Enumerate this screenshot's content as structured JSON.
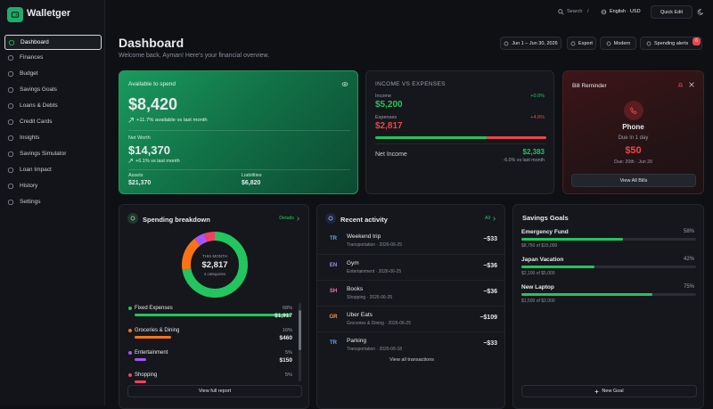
{
  "sidebar": {
    "brand": "Walletger",
    "nav": [
      "Dashboard",
      "Finances",
      "Budget",
      "Savings Goals",
      "Loans & Debts",
      "Credit Cards",
      "Insights",
      "Savings Simulator",
      "Loan Impact",
      "History",
      "Settings"
    ],
    "active": 0
  },
  "topbar": {
    "search": "Search",
    "shortcut": "/",
    "locale": "English · USD",
    "quick_edit": "Quick Edit"
  },
  "header": {
    "title": "Dashboard",
    "subtitle": "Welcome back, Ayman! Here's your financial overview.",
    "date_range": "Jun 1 – Jun 30, 2026",
    "export": "Export",
    "theme": "Modern",
    "alerts": "Spending alerts",
    "alerts_count": "6"
  },
  "available": {
    "label": "Available to spend",
    "amount": "$8,420",
    "change": "+11.7% available vs last month",
    "net_worth_label": "Net Worth",
    "net_worth": "$14,370",
    "net_worth_change": "+6.1% vs last month",
    "assets_label": "Assets",
    "assets": "$21,370",
    "liabilities_label": "Liabilities",
    "liabilities": "$6,820"
  },
  "income_expenses": {
    "title": "INCOME VS EXPENSES",
    "income": {
      "label": "Income",
      "change": "+0.0%",
      "amount": "$5,200",
      "value": 5200
    },
    "expenses": {
      "label": "Expenses",
      "change": "+4.8%",
      "amount": "$2,817",
      "value": 2817
    },
    "net_label": "Net Income",
    "net_amount": "$2,383",
    "net_change": "-6.0% vs last month"
  },
  "bill": {
    "title": "Bill Reminder",
    "name": "Phone",
    "due": "Due in 1 day",
    "amount": "$50",
    "due_date": "Due: 20th · Jun 20",
    "button": "View All Bills"
  },
  "spending": {
    "title": "Spending breakdown",
    "details": "Details",
    "center_label": "THIS MONTH",
    "total": "$2,817",
    "count": "4 categories",
    "categories": [
      {
        "name": "Fixed Expenses",
        "percent": 68,
        "percent_label": "68%",
        "amount": "$1,917",
        "color": "#22c55e"
      },
      {
        "name": "Groceries & Dining",
        "percent": 16,
        "percent_label": "16%",
        "amount": "$460",
        "color": "#f97316"
      },
      {
        "name": "Entertainment",
        "percent": 5,
        "percent_label": "5%",
        "amount": "$150",
        "color": "#a855f7"
      },
      {
        "name": "Shopping",
        "percent": 5,
        "percent_label": "5%",
        "color": "#f43f5e"
      }
    ],
    "footer": "View full report"
  },
  "activity": {
    "title": "Recent activity",
    "all": "All",
    "items": [
      {
        "initials": "TR",
        "color": "#60a5fa",
        "name": "Weekend trip",
        "meta": "Transportation · 2026-06-25",
        "amount": "−$33"
      },
      {
        "initials": "EN",
        "color": "#a78bfa",
        "name": "Gym",
        "meta": "Entertainment · 2026-06-25",
        "amount": "−$36"
      },
      {
        "initials": "SH",
        "color": "#f472b6",
        "name": "Books",
        "meta": "Shopping · 2026-06-25",
        "amount": "−$36"
      },
      {
        "initials": "GR",
        "color": "#fb923c",
        "name": "Uber Eats",
        "meta": "Groceries & Dining · 2026-06-25",
        "amount": "−$109"
      },
      {
        "initials": "TR",
        "color": "#60a5fa",
        "name": "Parking",
        "meta": "Transportation · 2026-06-18",
        "amount": "−$33"
      }
    ],
    "footer": "View all transactions"
  },
  "goals": {
    "title": "Savings Goals",
    "items": [
      {
        "name": "Emergency Fund",
        "percent": 58,
        "percent_label": "58%",
        "progress": "$8,750 of $15,000"
      },
      {
        "name": "Japan Vacation",
        "percent": 42,
        "percent_label": "42%",
        "progress": "$2,100 of $5,000"
      },
      {
        "name": "New Laptop",
        "percent": 75,
        "percent_label": "75%",
        "progress": "$1,500 of $2,000"
      }
    ],
    "footer": "New Goal"
  }
}
